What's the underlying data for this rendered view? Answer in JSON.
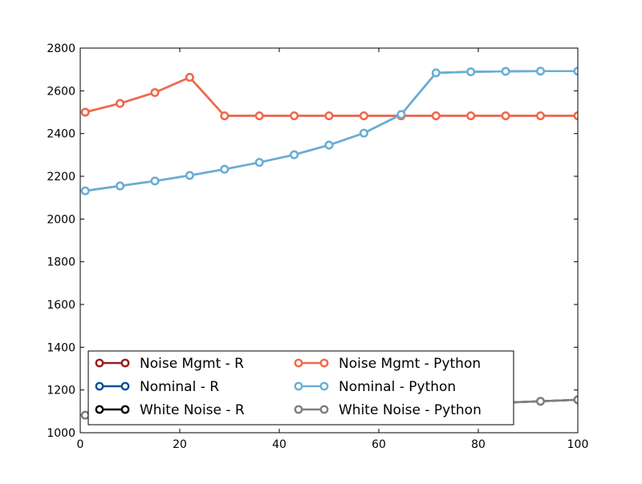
{
  "chart_data": {
    "type": "line",
    "title": "",
    "xlabel": "",
    "ylabel": "",
    "xlim": [
      0,
      100
    ],
    "ylim": [
      1000,
      2800
    ],
    "grid": false,
    "legend_placement": "lower-left",
    "x_ticks": [
      0,
      20,
      40,
      60,
      80,
      100
    ],
    "y_ticks": [
      1000,
      1200,
      1400,
      1600,
      1800,
      2000,
      2200,
      2400,
      2600,
      2800
    ],
    "x": [
      1,
      8,
      15,
      22,
      29,
      36,
      43,
      50,
      57,
      64.5,
      71.5,
      78.5,
      85.5,
      92.5,
      100
    ],
    "series": [
      {
        "name": "Noise Mgmt - R",
        "color": "#9b1b1e",
        "values": [
          2500,
          2541,
          2592,
          2663,
          2483,
          2483,
          2483,
          2483,
          2483,
          2483,
          2483,
          2483,
          2483,
          2483,
          2483
        ]
      },
      {
        "name": "Nominal - R",
        "color": "#0d4f95",
        "values": [
          2132,
          2155,
          2178,
          2204,
          2233,
          2265,
          2301,
          2346,
          2402,
          2489,
          2684,
          2689,
          2691,
          2692,
          2692
        ]
      },
      {
        "name": "White Noise - R",
        "color": "#000000",
        "values": [
          1082,
          1087,
          1092,
          1097,
          1102,
          1106,
          1110,
          1115,
          1120,
          1126,
          1131,
          1136,
          1141,
          1147,
          1154
        ]
      },
      {
        "name": "Noise Mgmt - Python",
        "color": "#f0694a",
        "values": [
          2500,
          2541,
          2592,
          2663,
          2483,
          2483,
          2483,
          2483,
          2483,
          2483,
          2483,
          2483,
          2483,
          2483,
          2483
        ]
      },
      {
        "name": "Nominal - Python",
        "color": "#6aaed6",
        "values": [
          2132,
          2155,
          2178,
          2204,
          2233,
          2265,
          2301,
          2346,
          2402,
          2489,
          2684,
          2689,
          2691,
          2692,
          2692
        ]
      },
      {
        "name": "White Noise - Python",
        "color": "#7f7f7f",
        "values": [
          1082,
          1087,
          1092,
          1097,
          1102,
          1106,
          1110,
          1115,
          1120,
          1126,
          1131,
          1136,
          1141,
          1147,
          1154
        ]
      }
    ]
  }
}
